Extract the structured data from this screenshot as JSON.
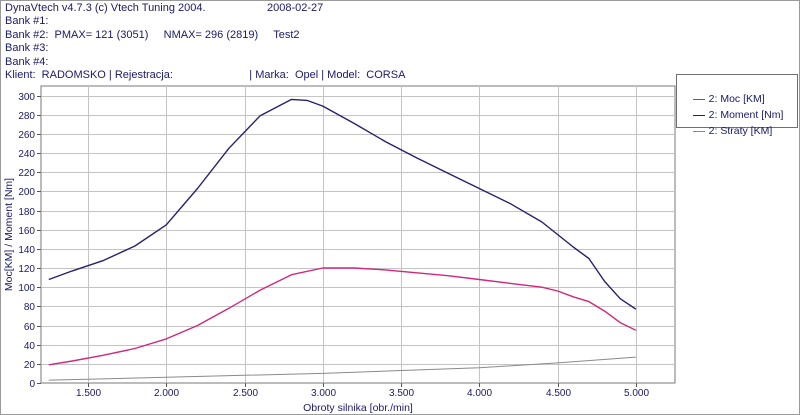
{
  "header": {
    "line1": "DynaVtech v4.7.3 (c) Vtech Tuning 2004.",
    "date": "2008-02-27",
    "bank1": "Bank #1:",
    "bank2": "Bank #2:  PMAX= 121 (3051)     NMAX= 296 (2819)     Test2",
    "bank3": "Bank #3:",
    "bank4": "Bank #4:",
    "client": "Klient:  RADOMSKO | Rejestracja:                         | Marka:  Opel | Model:  CORSA"
  },
  "colors": {
    "moc": "#d0287a",
    "moment": "#2a1f6e",
    "straty": "#8a8a8a",
    "grid": "#c4c4c4",
    "text": "#1a1a66"
  },
  "chart_data": {
    "type": "line",
    "xlabel": "Obroty silnika [obr./min]",
    "ylabel": "Moc[KM] / Moment [Nm]",
    "xlim": [
      1200,
      5250
    ],
    "ylim": [
      0,
      310
    ],
    "xticks": [
      1500,
      2000,
      2500,
      3000,
      3500,
      4000,
      4500,
      5000
    ],
    "xtick_labels": [
      "1.500",
      "2.000",
      "2.500",
      "3.000",
      "3.500",
      "4.000",
      "4.500",
      "5.000"
    ],
    "yticks": [
      0,
      20,
      40,
      60,
      80,
      100,
      120,
      140,
      160,
      180,
      200,
      220,
      240,
      260,
      280,
      300
    ],
    "grid": true,
    "legend_position": "top-right",
    "series": [
      {
        "name": "2: Moc [KM]",
        "color": "#d0287a",
        "x": [
          1250,
          1400,
          1600,
          1800,
          2000,
          2200,
          2400,
          2600,
          2800,
          3000,
          3200,
          3400,
          3600,
          3800,
          4000,
          4200,
          4400,
          4500,
          4600,
          4700,
          4800,
          4900,
          5000
        ],
        "y": [
          19,
          23,
          29,
          36,
          46,
          60,
          78,
          97,
          113,
          120,
          120,
          118,
          115,
          112,
          108,
          104,
          100,
          96,
          90,
          85,
          75,
          63,
          55
        ]
      },
      {
        "name": "2: Moment [Nm]",
        "color": "#2a1f6e",
        "x": [
          1250,
          1400,
          1600,
          1800,
          2000,
          2200,
          2400,
          2600,
          2800,
          2900,
          3000,
          3200,
          3400,
          3600,
          3800,
          4000,
          4200,
          4400,
          4500,
          4600,
          4700,
          4800,
          4900,
          5000
        ],
        "y": [
          108,
          117,
          128,
          143,
          165,
          203,
          245,
          279,
          296,
          295,
          289,
          271,
          252,
          235,
          219,
          203,
          187,
          168,
          155,
          142,
          130,
          106,
          88,
          77
        ]
      },
      {
        "name": "2: Straty [KM]",
        "color": "#8a8a8a",
        "x": [
          1250,
          1500,
          2000,
          2500,
          3000,
          3500,
          4000,
          4500,
          5000
        ],
        "y": [
          3,
          4,
          6,
          8,
          10,
          13,
          16,
          21,
          27
        ]
      }
    ]
  }
}
